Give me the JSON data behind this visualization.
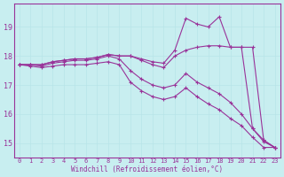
{
  "xlabel": "Windchill (Refroidissement éolien,°C)",
  "background_color": "#c8eef0",
  "line_color": "#993399",
  "grid_color": "#b8e4e8",
  "x_ticks": [
    0,
    1,
    2,
    3,
    4,
    5,
    6,
    7,
    8,
    9,
    10,
    11,
    12,
    13,
    14,
    15,
    16,
    17,
    18,
    19,
    20,
    21,
    22,
    23
  ],
  "y_ticks": [
    15,
    16,
    17,
    18,
    19
  ],
  "ylim": [
    14.5,
    19.8
  ],
  "xlim": [
    -0.5,
    23.5
  ],
  "series": [
    [
      17.7,
      17.7,
      17.7,
      17.8,
      17.85,
      17.9,
      17.9,
      17.95,
      18.05,
      18.0,
      18.0,
      17.9,
      17.8,
      17.75,
      18.2,
      19.3,
      19.1,
      19.0,
      19.35,
      18.3,
      18.3,
      15.5,
      15.1,
      14.85
    ],
    [
      17.7,
      17.7,
      17.7,
      17.8,
      17.85,
      17.9,
      17.9,
      17.95,
      18.05,
      18.0,
      18.0,
      17.85,
      17.7,
      17.6,
      18.0,
      18.2,
      18.3,
      18.35,
      18.35,
      18.3,
      18.3,
      18.3,
      15.1,
      14.85
    ],
    [
      17.7,
      17.7,
      17.65,
      17.75,
      17.8,
      17.85,
      17.85,
      17.9,
      18.0,
      17.9,
      17.5,
      17.2,
      17.0,
      16.9,
      17.0,
      17.4,
      17.1,
      16.9,
      16.7,
      16.4,
      16.0,
      15.5,
      15.05,
      14.85
    ],
    [
      17.7,
      17.65,
      17.6,
      17.65,
      17.7,
      17.7,
      17.7,
      17.75,
      17.8,
      17.7,
      17.1,
      16.8,
      16.6,
      16.5,
      16.6,
      16.9,
      16.6,
      16.35,
      16.15,
      15.85,
      15.6,
      15.2,
      14.85,
      14.85
    ]
  ]
}
